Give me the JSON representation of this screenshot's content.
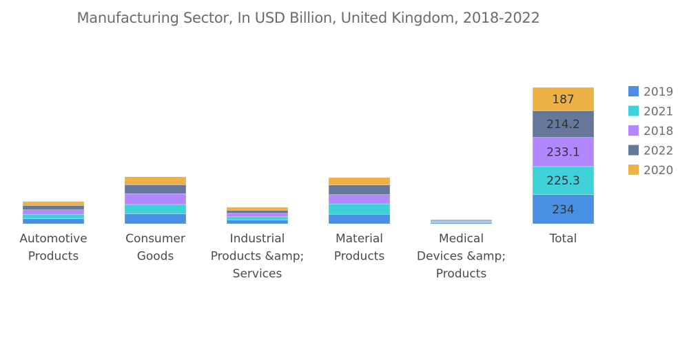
{
  "chart_data": {
    "type": "bar",
    "stacked": true,
    "title": "Manufacturing Sector, In USD Billion, United Kingdom, 2018-2022",
    "xlabel": "",
    "ylabel": "",
    "categories": [
      "Automotive Products",
      "Consumer Goods",
      "Industrial Products &amp; Services",
      "Material Products",
      "Medical Devices &amp; Products",
      "Total"
    ],
    "category_lines": [
      [
        "Automotive",
        "Products"
      ],
      [
        "Consumer",
        "Goods"
      ],
      [
        "Industrial",
        "Products &amp;",
        "Services"
      ],
      [
        "Material",
        "Products"
      ],
      [
        "Medical",
        "Devices &amp;",
        "Products"
      ],
      [
        "Total"
      ]
    ],
    "series": [
      {
        "name": "2019",
        "color": "#4a90e2",
        "values": [
          40,
          80,
          30,
          76,
          8,
          234
        ]
      },
      {
        "name": "2021",
        "color": "#3ed1d8",
        "values": [
          34,
          75,
          26,
          84,
          6.3,
          225.3
        ]
      },
      {
        "name": "2018",
        "color": "#b388ff",
        "values": [
          38,
          86,
          28,
          74,
          7.1,
          233.1
        ]
      },
      {
        "name": "2022",
        "color": "#65789c",
        "values": [
          35,
          72,
          24,
          77,
          6.2,
          214.2
        ]
      },
      {
        "name": "2020",
        "color": "#edb146",
        "values": [
          32,
          64,
          25,
          60,
          6,
          187
        ]
      }
    ],
    "data_labels_on": "Total",
    "grid": false,
    "y_axis_visible": false,
    "legend_position": "right"
  }
}
